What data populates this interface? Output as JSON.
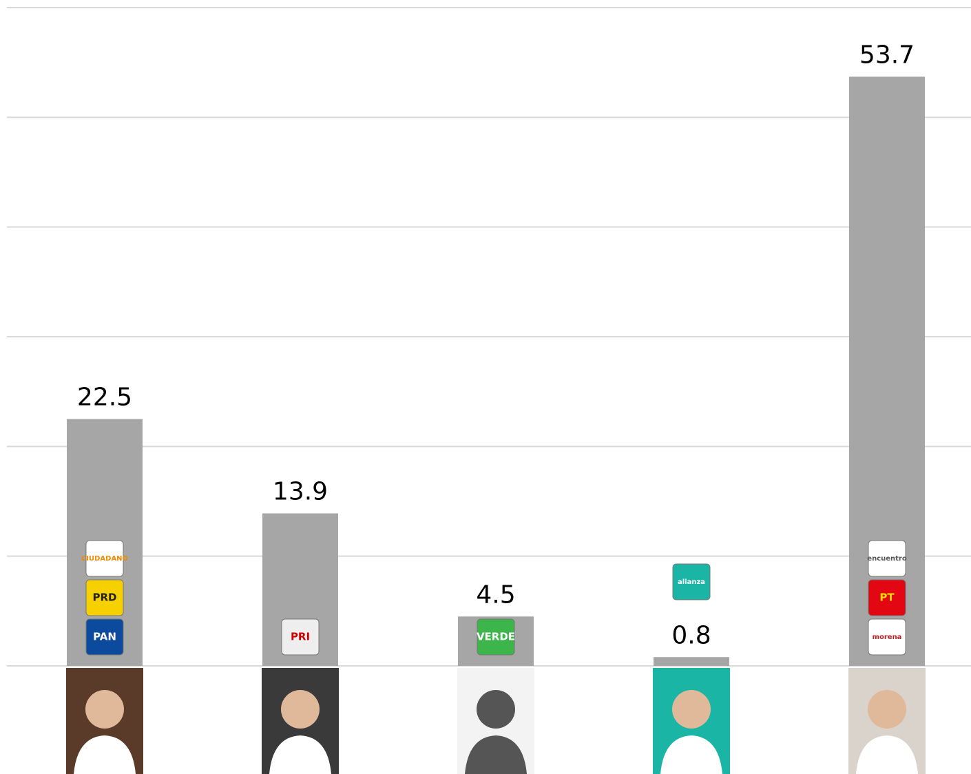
{
  "chart_data": {
    "type": "bar",
    "values": [
      22.5,
      13.9,
      4.5,
      0.8,
      53.7
    ],
    "color": "#a6a6a6",
    "ylim": [
      0,
      60
    ],
    "yticks": [
      0,
      10,
      20,
      30,
      40,
      50,
      60
    ],
    "grid": true,
    "party_logos": [
      [
        "PAN",
        "PRD",
        "CIUDADANO"
      ],
      [
        "PRI"
      ],
      [
        "VERDE"
      ],
      [
        "alianza"
      ],
      [
        "morena",
        "PT",
        "encuentro"
      ]
    ]
  }
}
